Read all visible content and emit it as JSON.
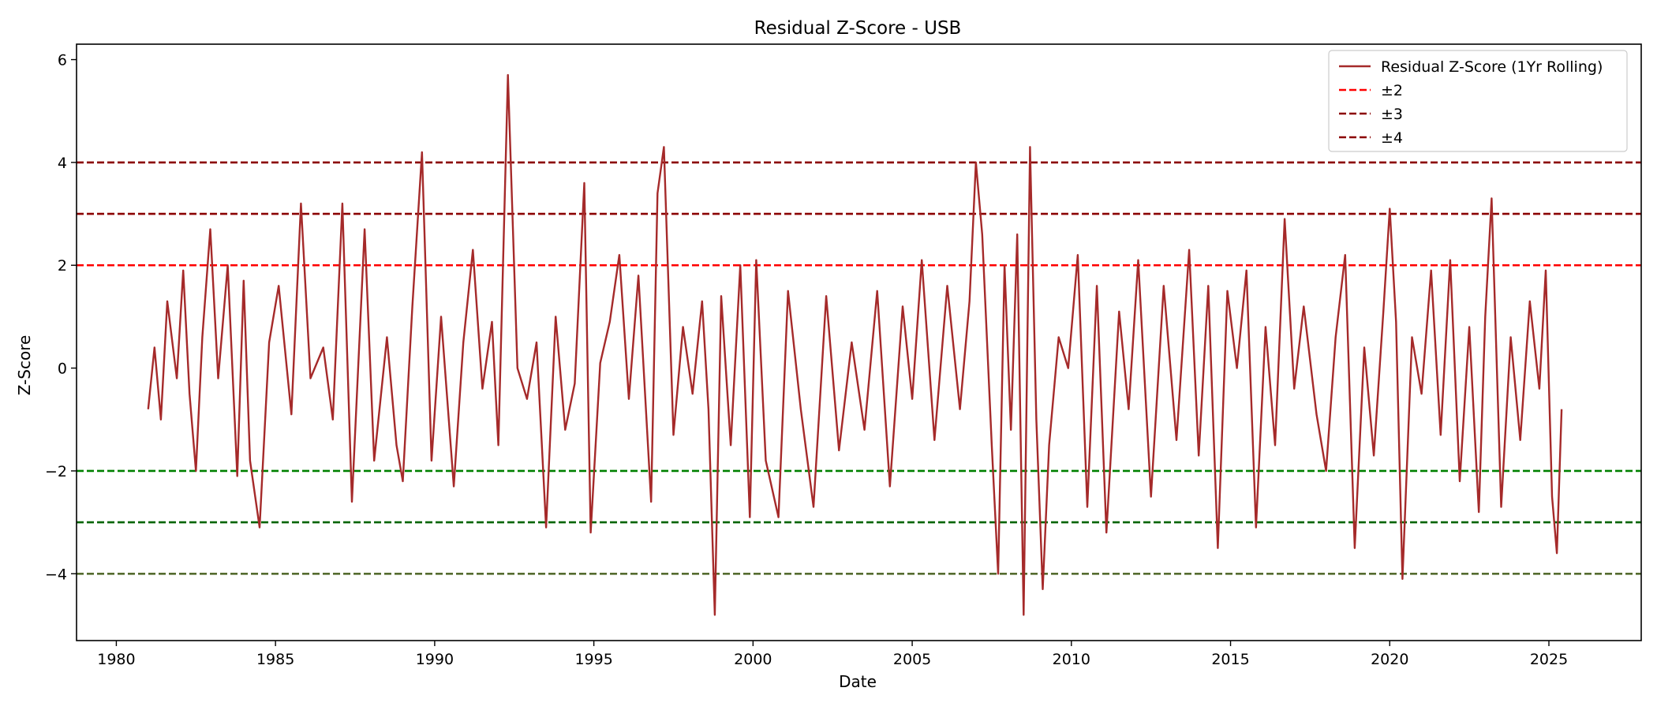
{
  "chart_data": {
    "type": "line",
    "title": "Residual Z-Score - USB",
    "xlabel": "Date",
    "ylabel": "Z-Score",
    "xlim": [
      1978.75,
      2027.9
    ],
    "ylim": [
      -5.3,
      6.3
    ],
    "x_ticks": [
      1980,
      1985,
      1990,
      1995,
      2000,
      2005,
      2010,
      2015,
      2020,
      2025
    ],
    "y_ticks": [
      {
        "value": 6,
        "label": "6"
      },
      {
        "value": 4,
        "label": "4"
      },
      {
        "value": 2,
        "label": "2"
      },
      {
        "value": 0,
        "label": "0"
      },
      {
        "value": -2,
        "label": "−2"
      },
      {
        "value": -4,
        "label": "−4"
      }
    ],
    "grid": false,
    "legend_position": "top-right",
    "legend": [
      {
        "label": "Residual Z-Score (1Yr Rolling)",
        "color": "#a52a2a",
        "style": "solid"
      },
      {
        "label": "±2",
        "color": "#ff0000",
        "style": "dashed"
      },
      {
        "label": "±3",
        "color": "#8b0000",
        "style": "dashed"
      },
      {
        "label": "±4",
        "color": "#8b0000",
        "style": "dashed"
      }
    ],
    "threshold_lines": [
      {
        "value": 4,
        "color": "#8b0000"
      },
      {
        "value": 3,
        "color": "#8b0000"
      },
      {
        "value": 2,
        "color": "#ff0000"
      },
      {
        "value": -2,
        "color": "#008000"
      },
      {
        "value": -3,
        "color": "#006400"
      },
      {
        "value": -4,
        "color": "#556b2f"
      }
    ],
    "series": [
      {
        "name": "Residual Z-Score (1Yr Rolling)",
        "color": "#a52a2a",
        "x": [
          1981.0,
          1981.2,
          1981.4,
          1981.6,
          1981.9,
          1982.1,
          1982.3,
          1982.5,
          1982.7,
          1982.95,
          1983.2,
          1983.5,
          1983.8,
          1984.0,
          1984.2,
          1984.5,
          1984.8,
          1985.1,
          1985.5,
          1985.8,
          1986.1,
          1986.5,
          1986.8,
          1987.1,
          1987.4,
          1987.8,
          1988.1,
          1988.5,
          1988.8,
          1989.0,
          1989.3,
          1989.6,
          1989.9,
          1990.2,
          1990.6,
          1990.9,
          1991.2,
          1991.5,
          1991.8,
          1992.0,
          1992.3,
          1992.6,
          1992.9,
          1993.2,
          1993.5,
          1993.8,
          1994.1,
          1994.4,
          1994.7,
          1994.9,
          1995.2,
          1995.5,
          1995.8,
          1996.1,
          1996.4,
          1996.8,
          1997.0,
          1997.2,
          1997.5,
          1997.8,
          1998.1,
          1998.4,
          1998.6,
          1998.8,
          1999.0,
          1999.3,
          1999.6,
          1999.9,
          2000.1,
          2000.4,
          2000.8,
          2001.1,
          2001.5,
          2001.9,
          2002.3,
          2002.7,
          2003.1,
          2003.5,
          2003.9,
          2004.3,
          2004.7,
          2005.0,
          2005.3,
          2005.7,
          2006.1,
          2006.5,
          2006.8,
          2007.0,
          2007.2,
          2007.5,
          2007.7,
          2007.9,
          2008.1,
          2008.3,
          2008.5,
          2008.7,
          2008.9,
          2009.1,
          2009.3,
          2009.6,
          2009.9,
          2010.2,
          2010.5,
          2010.8,
          2011.1,
          2011.5,
          2011.8,
          2012.1,
          2012.5,
          2012.9,
          2013.3,
          2013.7,
          2014.0,
          2014.3,
          2014.6,
          2014.9,
          2015.2,
          2015.5,
          2015.8,
          2016.1,
          2016.4,
          2016.7,
          2017.0,
          2017.3,
          2017.7,
          2018.0,
          2018.3,
          2018.6,
          2018.9,
          2019.2,
          2019.5,
          2019.8,
          2020.0,
          2020.2,
          2020.4,
          2020.7,
          2021.0,
          2021.3,
          2021.6,
          2021.9,
          2022.2,
          2022.5,
          2022.8,
          2023.0,
          2023.2,
          2023.5,
          2023.8,
          2024.1,
          2024.4,
          2024.7,
          2024.9,
          2025.1,
          2025.25,
          2025.4
        ],
        "y": [
          -0.8,
          0.4,
          -1.0,
          1.3,
          -0.2,
          1.9,
          -0.5,
          -2.0,
          0.6,
          2.7,
          -0.2,
          2.0,
          -2.1,
          1.7,
          -1.8,
          -3.1,
          0.5,
          1.6,
          -0.9,
          3.2,
          -0.2,
          0.4,
          -1.0,
          3.2,
          -2.6,
          2.7,
          -1.8,
          0.6,
          -1.5,
          -2.2,
          1.2,
          4.2,
          -1.8,
          1.0,
          -2.3,
          0.5,
          2.3,
          -0.4,
          0.9,
          -1.5,
          5.7,
          0.0,
          -0.6,
          0.5,
          -3.1,
          1.0,
          -1.2,
          -0.3,
          3.6,
          -3.2,
          0.1,
          0.9,
          2.2,
          -0.6,
          1.8,
          -2.6,
          3.4,
          4.3,
          -1.3,
          0.8,
          -0.5,
          1.3,
          -0.8,
          -4.8,
          1.4,
          -1.5,
          2.0,
          -2.9,
          2.1,
          -1.8,
          -2.9,
          1.5,
          -0.8,
          -2.7,
          1.4,
          -1.6,
          0.5,
          -1.2,
          1.5,
          -2.3,
          1.2,
          -0.6,
          2.1,
          -1.4,
          1.6,
          -0.8,
          1.3,
          4.0,
          2.6,
          -1.5,
          -4.0,
          2.0,
          -1.2,
          2.6,
          -4.8,
          4.3,
          -1.0,
          -4.3,
          -1.5,
          0.6,
          0.0,
          2.2,
          -2.7,
          1.6,
          -3.2,
          1.1,
          -0.8,
          2.1,
          -2.5,
          1.6,
          -1.4,
          2.3,
          -1.7,
          1.6,
          -3.5,
          1.5,
          0.0,
          1.9,
          -3.1,
          0.8,
          -1.5,
          2.9,
          -0.4,
          1.2,
          -0.9,
          -2.0,
          0.6,
          2.2,
          -3.5,
          0.4,
          -1.7,
          1.1,
          3.1,
          0.9,
          -4.1,
          0.6,
          -0.5,
          1.9,
          -1.3,
          2.1,
          -2.2,
          0.8,
          -2.8,
          1.0,
          3.3,
          -2.7,
          0.6,
          -1.4,
          1.3,
          -0.4,
          1.9,
          -2.5,
          -3.6,
          -0.8
        ]
      }
    ]
  }
}
